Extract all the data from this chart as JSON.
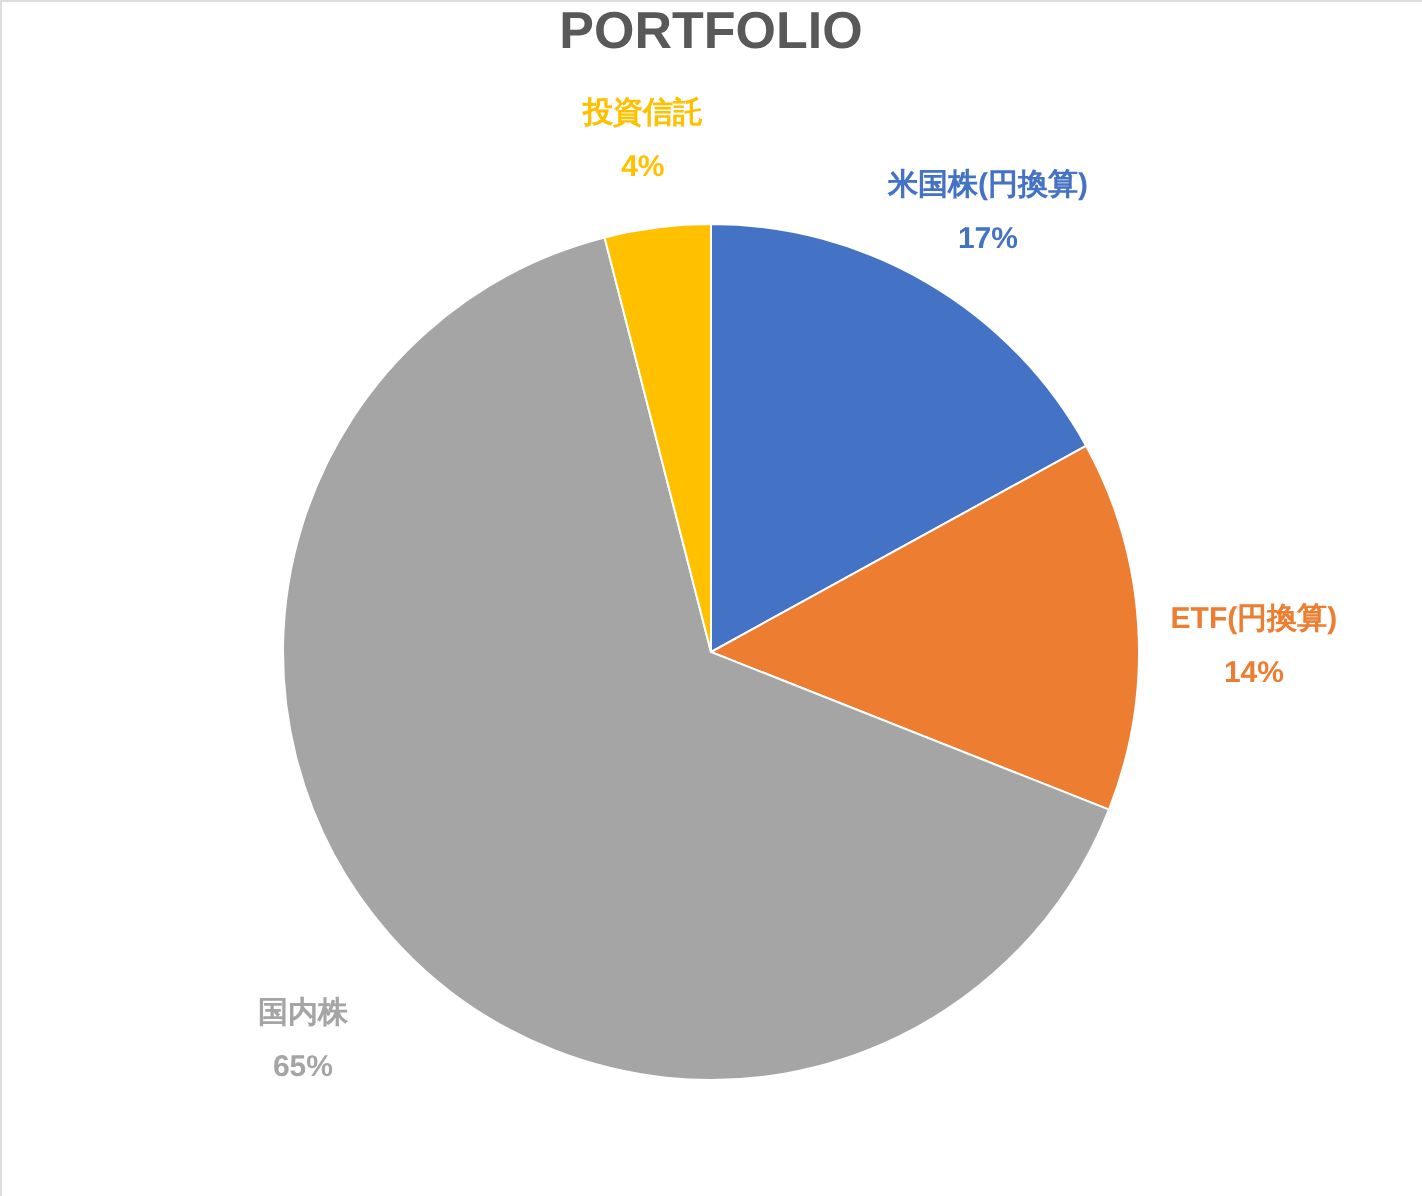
{
  "chart_data": {
    "type": "pie",
    "title": "PORTFOLIO",
    "categories": [
      "米国株(円換算)",
      "ETF(円換算)",
      "国内株",
      "投資信託"
    ],
    "values": [
      17,
      14,
      65,
      4
    ],
    "colors": [
      "#4472c4",
      "#ed7d31",
      "#a5a5a5",
      "#ffc000"
    ],
    "value_labels": [
      "17%",
      "14%",
      "65%",
      "4%"
    ]
  }
}
